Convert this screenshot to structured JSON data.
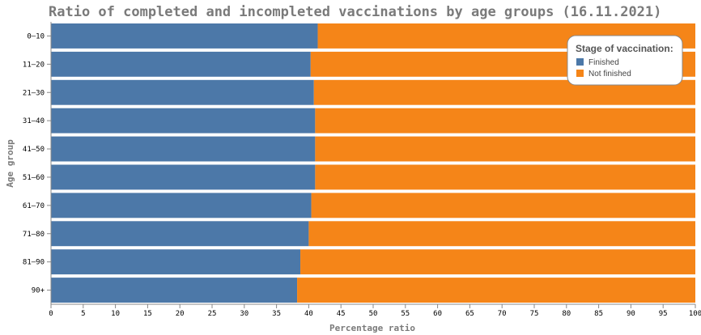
{
  "chart_data": {
    "type": "bar",
    "orientation": "horizontal",
    "stacked": true,
    "title": "Ratio of completed and incompleted vaccinations by age groups (16.11.2021)",
    "xlabel": "Percentage ratio",
    "ylabel": "Age group",
    "xlim": [
      0,
      100
    ],
    "x_ticks": [
      0,
      5,
      10,
      15,
      20,
      25,
      30,
      35,
      40,
      45,
      50,
      55,
      60,
      65,
      70,
      75,
      80,
      85,
      90,
      95,
      100
    ],
    "categories": [
      "0–10",
      "11–20",
      "21–30",
      "31–40",
      "41–50",
      "51–60",
      "61–70",
      "71–80",
      "81–90",
      "90+"
    ],
    "series": [
      {
        "name": "Finished",
        "color": "#4c78a8",
        "values": [
          41.4,
          40.3,
          40.8,
          41.0,
          41.0,
          41.0,
          40.4,
          40.0,
          38.7,
          38.2
        ]
      },
      {
        "name": "Not finished",
        "color": "#f58518",
        "values": [
          58.6,
          59.7,
          59.2,
          59.0,
          59.0,
          59.0,
          59.6,
          60.0,
          61.3,
          61.8
        ]
      }
    ],
    "legend": {
      "title": "Stage of vaccination:",
      "position": "top-right"
    },
    "grid": false
  }
}
